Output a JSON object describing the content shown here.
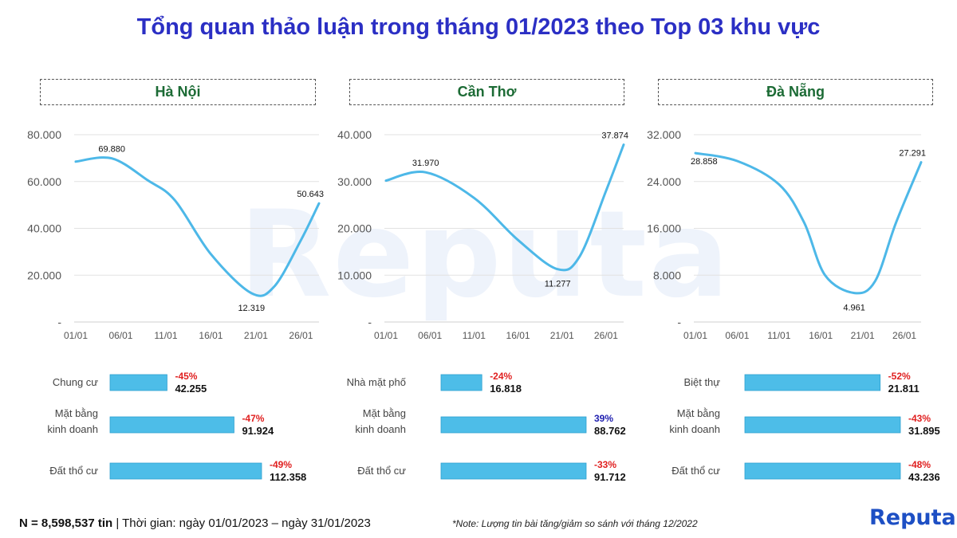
{
  "title": "Tổng quan thảo luận trong tháng 01/2023 theo Top 03 khu vực",
  "watermark": "Reputa",
  "colors": {
    "title": "#2b2fc4",
    "line": "#4db8e8",
    "bar": "#4dbde8",
    "region": "#1c6b35",
    "negative": "#e02020",
    "positive": "#2020b0"
  },
  "chart_data": [
    {
      "region": "Hà Nội",
      "line": {
        "type": "line",
        "x_ticks": [
          "01/01",
          "06/01",
          "11/01",
          "16/01",
          "21/01",
          "26/01"
        ],
        "y_ticks": [
          "-",
          "20.000",
          "40.000",
          "60.000",
          "80.000"
        ],
        "ylim": [
          0,
          80000
        ],
        "points": [
          {
            "x": 0,
            "y": 68500
          },
          {
            "x": 4,
            "y": 69880,
            "label": "69.880"
          },
          {
            "x": 8,
            "y": 60500
          },
          {
            "x": 11,
            "y": 52000
          },
          {
            "x": 15,
            "y": 29000
          },
          {
            "x": 19.5,
            "y": 12319,
            "label": "12.319"
          },
          {
            "x": 22,
            "y": 15000
          },
          {
            "x": 25,
            "y": 35000
          },
          {
            "x": 27,
            "y": 50643,
            "label": "50.643"
          }
        ]
      },
      "bars": {
        "type": "bar",
        "categories": [
          "Chung cư",
          "Mặt bằng\nkinh doanh",
          "Đất thổ cư"
        ],
        "values": [
          42255,
          91924,
          112358
        ],
        "value_labels": [
          "42.255",
          "91.924",
          "112.358"
        ],
        "changes": [
          "-45%",
          "-47%",
          "-49%"
        ]
      }
    },
    {
      "region": "Cần Thơ",
      "line": {
        "type": "line",
        "x_ticks": [
          "01/01",
          "06/01",
          "11/01",
          "16/01",
          "21/01",
          "26/01"
        ],
        "y_ticks": [
          "-",
          "10.000",
          "20.000",
          "30.000",
          "40.000"
        ],
        "ylim": [
          0,
          40000
        ],
        "points": [
          {
            "x": 0,
            "y": 30200
          },
          {
            "x": 4.5,
            "y": 31970,
            "label": "31.970"
          },
          {
            "x": 10,
            "y": 26500
          },
          {
            "x": 15,
            "y": 17500
          },
          {
            "x": 19.5,
            "y": 11277,
            "label": "11.277"
          },
          {
            "x": 22,
            "y": 14000
          },
          {
            "x": 25,
            "y": 28000
          },
          {
            "x": 27,
            "y": 37874,
            "label": "37.874"
          }
        ]
      },
      "bars": {
        "type": "bar",
        "categories": [
          "Nhà mặt phố",
          "Mặt bằng\nkinh doanh",
          "Đất thổ cư"
        ],
        "values": [
          16818,
          88762,
          91712
        ],
        "value_labels": [
          "16.818",
          "88.762",
          "91.712"
        ],
        "changes": [
          "-24%",
          "39%",
          "-33%"
        ]
      }
    },
    {
      "region": "Đà Nẵng",
      "line": {
        "type": "line",
        "x_ticks": [
          "01/01",
          "06/01",
          "11/01",
          "16/01",
          "21/01",
          "26/01"
        ],
        "y_ticks": [
          "-",
          "8.000",
          "16.000",
          "24.000",
          "32.000"
        ],
        "ylim": [
          0,
          32000
        ],
        "points": [
          {
            "x": 0,
            "y": 28858,
            "label": "28.858"
          },
          {
            "x": 5,
            "y": 27500
          },
          {
            "x": 10,
            "y": 23500
          },
          {
            "x": 13,
            "y": 17000
          },
          {
            "x": 15.5,
            "y": 8000
          },
          {
            "x": 19,
            "y": 4961,
            "label": "4.961"
          },
          {
            "x": 21.5,
            "y": 7000
          },
          {
            "x": 24,
            "y": 17000
          },
          {
            "x": 27,
            "y": 27291,
            "label": "27.291"
          }
        ]
      },
      "bars": {
        "type": "bar",
        "categories": [
          "Biệt thự",
          "Mặt bằng\nkinh doanh",
          "Đất thổ cư"
        ],
        "values": [
          21811,
          31895,
          43236
        ],
        "value_labels": [
          "21.811",
          "31.895",
          "43.236"
        ],
        "changes": [
          "-52%",
          "-43%",
          "-48%"
        ]
      }
    }
  ],
  "footer": {
    "n_label": "N = 8,598,537 tin",
    "period": " | Thời gian: ngày 01/01/2023 – ngày 31/01/2023",
    "note": "*Note: Lượng tin bài tăng/giảm so sánh với tháng 12/2022"
  },
  "logo": {
    "text": "Reputa"
  }
}
